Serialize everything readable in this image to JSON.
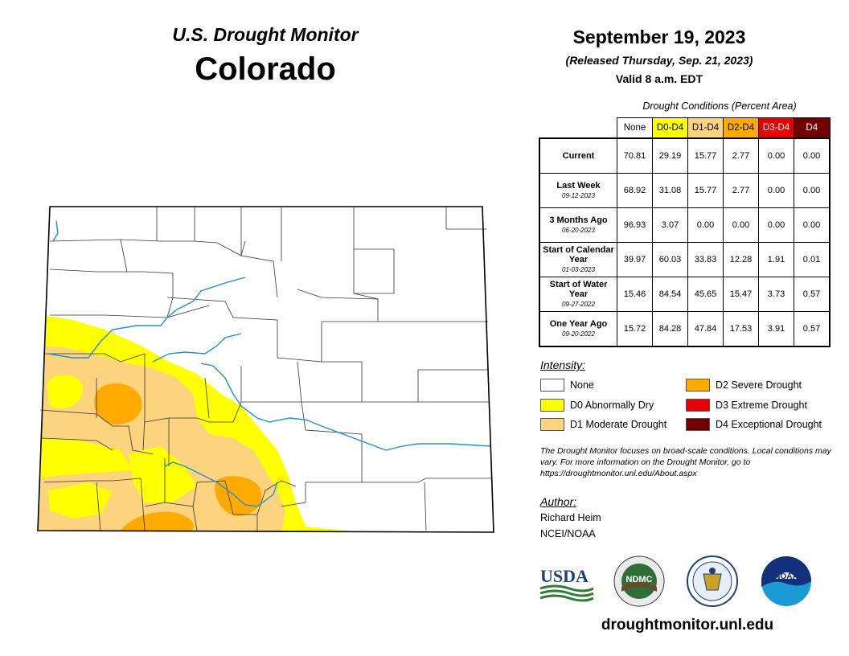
{
  "header": {
    "title": "U.S. Drought Monitor",
    "state": "Colorado",
    "date": "September 19, 2023",
    "released": "(Released Thursday, Sep. 21, 2023)",
    "valid": "Valid 8 a.m. EDT"
  },
  "table": {
    "caption": "Drought Conditions (Percent Area)",
    "columns": [
      {
        "label": "None",
        "bg": "#ffffff",
        "fg": "#000000"
      },
      {
        "label": "D0-D4",
        "bg": "#ffff00",
        "fg": "#000000"
      },
      {
        "label": "D1-D4",
        "bg": "#fcd37f",
        "fg": "#000000"
      },
      {
        "label": "D2-D4",
        "bg": "#ffaa00",
        "fg": "#000000"
      },
      {
        "label": "D3-D4",
        "bg": "#e60000",
        "fg": "#ffffff"
      },
      {
        "label": "D4",
        "bg": "#730000",
        "fg": "#ffffff"
      }
    ],
    "rows": [
      {
        "label": "Current",
        "sub": "",
        "values": [
          "70.81",
          "29.19",
          "15.77",
          "2.77",
          "0.00",
          "0.00"
        ]
      },
      {
        "label": "Last Week",
        "sub": "09-12-2023",
        "values": [
          "68.92",
          "31.08",
          "15.77",
          "2.77",
          "0.00",
          "0.00"
        ]
      },
      {
        "label": "3 Months Ago",
        "sub": "06-20-2023",
        "values": [
          "96.93",
          "3.07",
          "0.00",
          "0.00",
          "0.00",
          "0.00"
        ]
      },
      {
        "label": "Start of Calendar Year",
        "sub": "01-03-2023",
        "values": [
          "39.97",
          "60.03",
          "33.83",
          "12.28",
          "1.91",
          "0.01"
        ]
      },
      {
        "label": "Start of Water Year",
        "sub": "09-27-2022",
        "values": [
          "15.46",
          "84.54",
          "45.65",
          "15.47",
          "3.73",
          "0.57"
        ]
      },
      {
        "label": "One Year Ago",
        "sub": "09-20-2022",
        "values": [
          "15.72",
          "84.28",
          "47.84",
          "17.53",
          "3.91",
          "0.57"
        ]
      }
    ]
  },
  "legend": {
    "heading": "Intensity:",
    "items": [
      {
        "label": "None",
        "color": "#ffffff"
      },
      {
        "label": "D0 Abnormally Dry",
        "color": "#ffff00"
      },
      {
        "label": "D1 Moderate Drought",
        "color": "#fcd37f"
      },
      {
        "label": "D2 Severe Drought",
        "color": "#ffaa00"
      },
      {
        "label": "D3 Extreme Drought",
        "color": "#e60000"
      },
      {
        "label": "D4 Exceptional Drought",
        "color": "#730000"
      }
    ]
  },
  "note": "The Drought Monitor focuses on broad-scale conditions. Local conditions may vary. For more information on the Drought Monitor, go to https://droughtmonitor.unl.edu/About.aspx",
  "author": {
    "heading": "Author:",
    "name": "Richard Heim",
    "org": "NCEI/NOAA"
  },
  "logos": {
    "usda": "USDA",
    "ndmc": "NDMC",
    "noaa": "NOAA"
  },
  "footer_url": "droughtmonitor.unl.edu",
  "colors": {
    "d0": "#ffff00",
    "d1": "#fcd37f",
    "d2": "#ffaa00",
    "river": "#1e90d8",
    "county_line": "#333333"
  }
}
